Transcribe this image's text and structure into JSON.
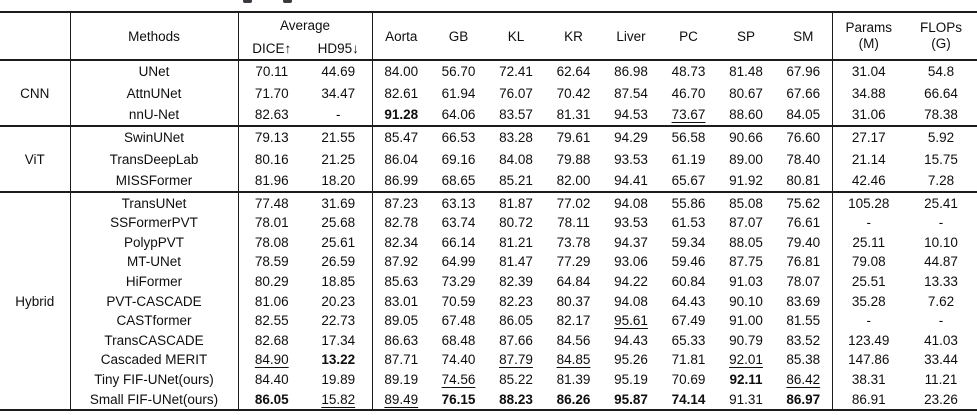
{
  "colors": {
    "rule": "#1c1c1c",
    "text": "#0e0e0e",
    "background": "#ffffff"
  },
  "table": {
    "header": {
      "methods": "Methods",
      "average": "Average",
      "dice": "DICE↑",
      "hd95": "HD95↓",
      "organs": [
        "Aorta",
        "GB",
        "KL",
        "KR",
        "Liver",
        "PC",
        "SP",
        "SM"
      ],
      "params_line1": "Params",
      "params_line2": "(M)",
      "flops_line1": "FLOPs",
      "flops_line2": "(G)"
    },
    "groups": [
      {
        "name": "CNN",
        "rows": [
          {
            "method": "UNet",
            "values": [
              "70.11",
              "44.69",
              "84.00",
              "56.70",
              "72.41",
              "62.64",
              "86.98",
              "48.73",
              "81.48",
              "67.96",
              "31.04",
              "54.8"
            ],
            "bold": [],
            "underline": []
          },
          {
            "method": "AttnUNet",
            "values": [
              "71.70",
              "34.47",
              "82.61",
              "61.94",
              "76.07",
              "70.42",
              "87.54",
              "46.70",
              "80.67",
              "67.66",
              "34.88",
              "66.64"
            ],
            "bold": [],
            "underline": []
          },
          {
            "method": "nnU-Net",
            "values": [
              "82.63",
              "-",
              "91.28",
              "64.06",
              "83.57",
              "81.31",
              "94.53",
              "73.67",
              "88.60",
              "84.05",
              "31.06",
              "78.38"
            ],
            "bold": [
              2
            ],
            "underline": [
              7
            ]
          }
        ]
      },
      {
        "name": "ViT",
        "rows": [
          {
            "method": "SwinUNet",
            "values": [
              "79.13",
              "21.55",
              "85.47",
              "66.53",
              "83.28",
              "79.61",
              "94.29",
              "56.58",
              "90.66",
              "76.60",
              "27.17",
              "5.92"
            ],
            "bold": [],
            "underline": []
          },
          {
            "method": "TransDeepLab",
            "values": [
              "80.16",
              "21.25",
              "86.04",
              "69.16",
              "84.08",
              "79.88",
              "93.53",
              "61.19",
              "89.00",
              "78.40",
              "21.14",
              "15.75"
            ],
            "bold": [],
            "underline": []
          },
          {
            "method": "MISSFormer",
            "values": [
              "81.96",
              "18.20",
              "86.99",
              "68.65",
              "85.21",
              "82.00",
              "94.41",
              "65.67",
              "91.92",
              "80.81",
              "42.46",
              "7.28"
            ],
            "bold": [],
            "underline": []
          }
        ]
      },
      {
        "name": "Hybrid",
        "rows": [
          {
            "method": "TransUNet",
            "values": [
              "77.48",
              "31.69",
              "87.23",
              "63.13",
              "81.87",
              "77.02",
              "94.08",
              "55.86",
              "85.08",
              "75.62",
              "105.28",
              "25.41"
            ],
            "bold": [],
            "underline": []
          },
          {
            "method": "SSFormerPVT",
            "values": [
              "78.01",
              "25.68",
              "82.78",
              "63.74",
              "80.72",
              "78.11",
              "93.53",
              "61.53",
              "87.07",
              "76.61",
              "-",
              "-"
            ],
            "bold": [],
            "underline": []
          },
          {
            "method": "PolypPVT",
            "values": [
              "78.08",
              "25.61",
              "82.34",
              "66.14",
              "81.21",
              "73.78",
              "94.37",
              "59.34",
              "88.05",
              "79.40",
              "25.11",
              "10.10"
            ],
            "bold": [],
            "underline": []
          },
          {
            "method": "MT-UNet",
            "values": [
              "78.59",
              "26.59",
              "87.92",
              "64.99",
              "81.47",
              "77.29",
              "93.06",
              "59.46",
              "87.75",
              "76.81",
              "79.08",
              "44.87"
            ],
            "bold": [],
            "underline": []
          },
          {
            "method": "HiFormer",
            "values": [
              "80.29",
              "18.85",
              "85.63",
              "73.29",
              "82.39",
              "64.84",
              "94.22",
              "60.84",
              "91.03",
              "78.07",
              "25.51",
              "13.33"
            ],
            "bold": [],
            "underline": []
          },
          {
            "method": "PVT-CASCADE",
            "values": [
              "81.06",
              "20.23",
              "83.01",
              "70.59",
              "82.23",
              "80.37",
              "94.08",
              "64.43",
              "90.10",
              "83.69",
              "35.28",
              "7.62"
            ],
            "bold": [],
            "underline": []
          },
          {
            "method": "CASTformer",
            "values": [
              "82.55",
              "22.73",
              "89.05",
              "67.48",
              "86.05",
              "82.17",
              "95.61",
              "67.49",
              "91.00",
              "81.55",
              "-",
              "-"
            ],
            "bold": [],
            "underline": [
              6
            ]
          },
          {
            "method": "TransCASCADE",
            "values": [
              "82.68",
              "17.34",
              "86.63",
              "68.48",
              "87.66",
              "84.56",
              "94.43",
              "65.33",
              "90.79",
              "83.52",
              "123.49",
              "41.03"
            ],
            "bold": [],
            "underline": []
          },
          {
            "method": "Cascaded MERIT",
            "values": [
              "84.90",
              "13.22",
              "87.71",
              "74.40",
              "87.79",
              "84.85",
              "95.26",
              "71.81",
              "92.01",
              "85.38",
              "147.86",
              "33.44"
            ],
            "bold": [
              1
            ],
            "underline": [
              0,
              4,
              5,
              8
            ]
          },
          {
            "method": "Tiny FIF-UNet(ours)",
            "values": [
              "84.40",
              "19.89",
              "89.19",
              "74.56",
              "85.22",
              "81.39",
              "95.19",
              "70.69",
              "92.11",
              "86.42",
              "38.31",
              "11.21"
            ],
            "bold": [
              8
            ],
            "underline": [
              3,
              9
            ]
          },
          {
            "method": "Small FIF-UNet(ours)",
            "values": [
              "86.05",
              "15.82",
              "89.49",
              "76.15",
              "88.23",
              "86.26",
              "95.87",
              "74.14",
              "91.31",
              "86.97",
              "86.91",
              "23.26"
            ],
            "bold": [
              0,
              3,
              4,
              5,
              6,
              7,
              9
            ],
            "underline": [
              1,
              2
            ]
          }
        ]
      }
    ]
  }
}
